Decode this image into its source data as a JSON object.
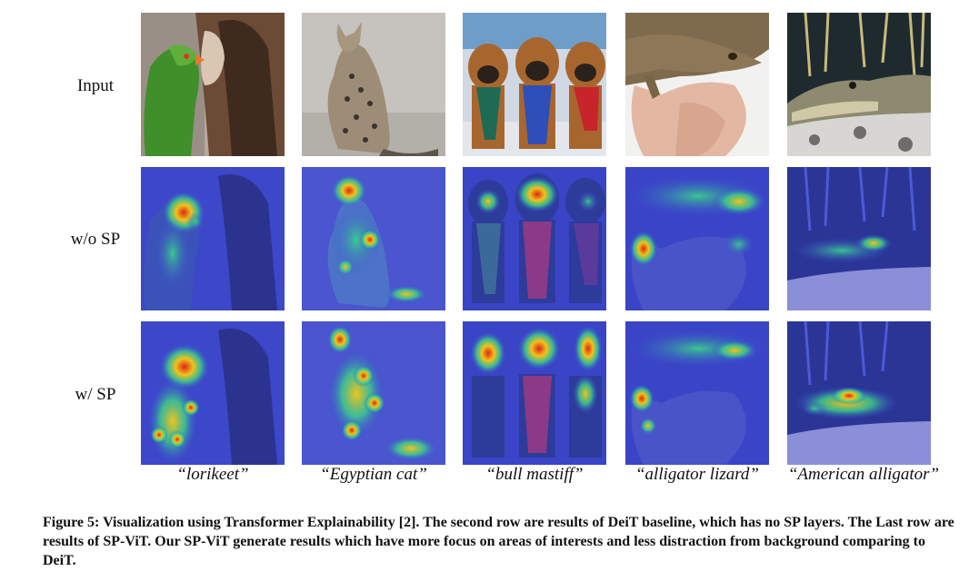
{
  "row_labels": [
    "Input",
    "w/o SP",
    "w/ SP"
  ],
  "class_labels": [
    "“lorikeet”",
    "“Egyptian cat”",
    "“bull mastiff”",
    "“alligator lizard”",
    "“American alligator”"
  ],
  "caption": "Figure 5: Visualization using Transformer Explainability [2]. The second row are results of DeiT baseline, which has no SP layers. The Last row are results of SP-ViT. Our SP-ViT generate results which have more focus on areas of interests and less distraction from background comparing to DeiT.",
  "colors": {
    "heat_base": "#3a44d8",
    "heat_hot": "#d8291c",
    "heat_warm": "#f2c21a",
    "heat_mid": "#3bd48a"
  }
}
